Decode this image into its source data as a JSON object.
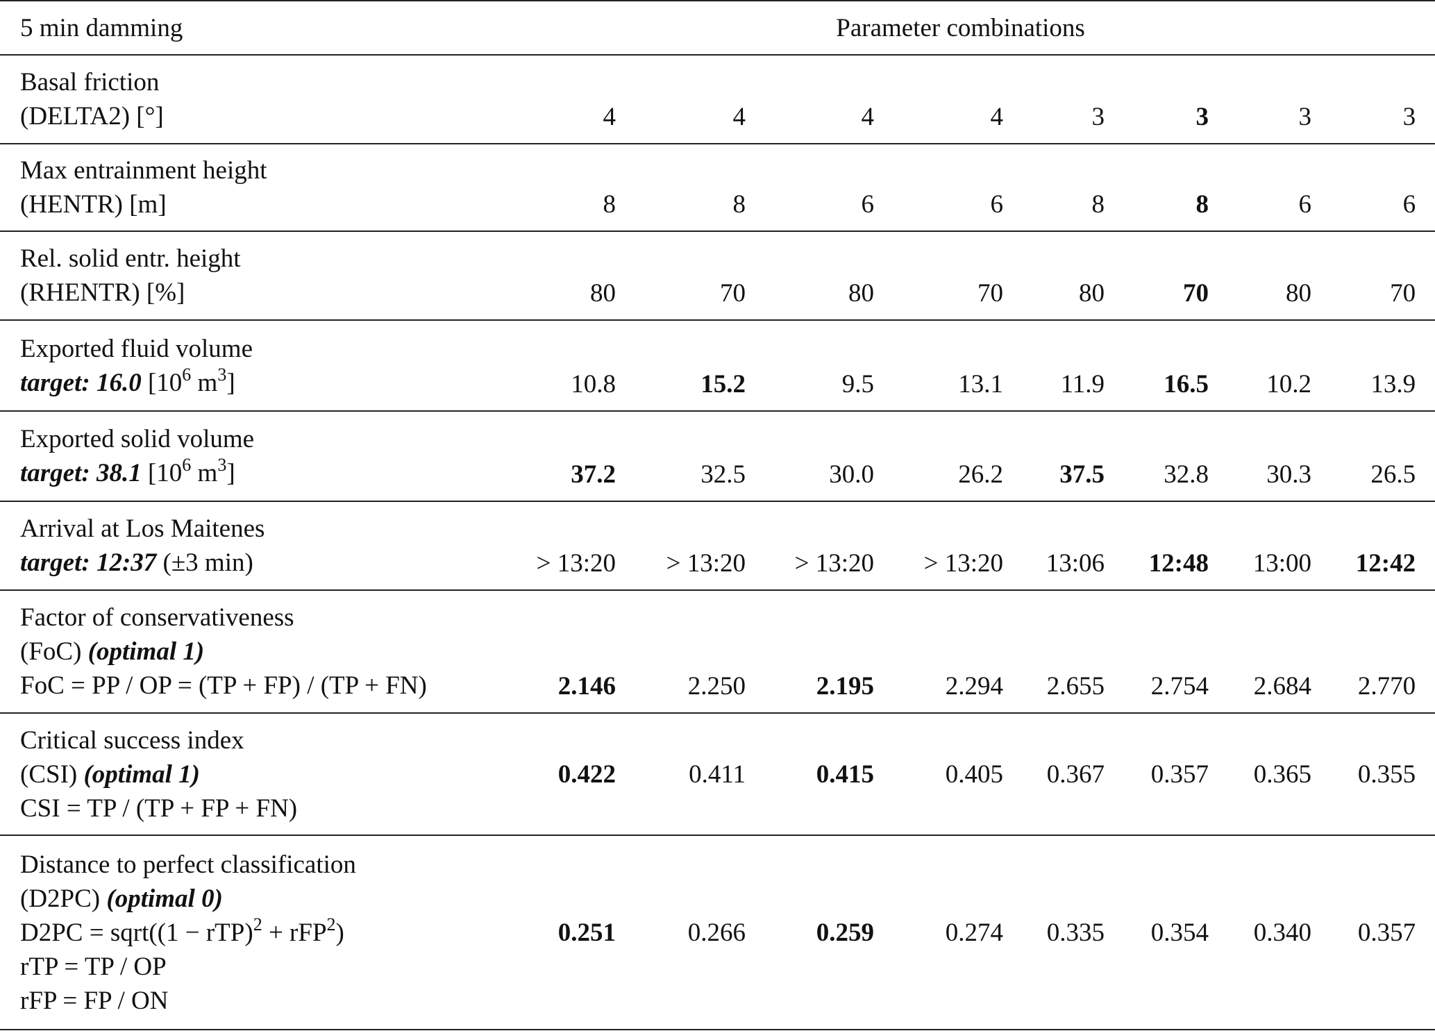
{
  "table": {
    "header": [
      "5 min damming",
      "Parameter combinations"
    ],
    "rows": [
      {
        "label": [
          [
            "Basal friction"
          ],
          [
            "(DELTA2) [°]"
          ]
        ],
        "values": [
          "4",
          "4",
          "4",
          "4",
          "3",
          "3",
          "3",
          "3"
        ],
        "bold": [
          5
        ]
      },
      {
        "label": [
          [
            "Max entrainment height"
          ],
          [
            "(HENTR) [m]"
          ]
        ],
        "values": [
          "8",
          "8",
          "6",
          "6",
          "8",
          "8",
          "6",
          "6"
        ],
        "bold": [
          5
        ]
      },
      {
        "label": [
          [
            "Rel. solid entr. height"
          ],
          [
            "(RHENTR) [%]"
          ]
        ],
        "values": [
          "80",
          "70",
          "80",
          "70",
          "80",
          "70",
          "80",
          "70"
        ],
        "bold": [
          5
        ]
      },
      {
        "label": [
          [
            "Exported fluid volume"
          ],
          [
            {
              "text": "target: 16.0",
              "style": "bold-italic"
            },
            " [10",
            {
              "text": "6",
              "style": "sup"
            },
            " m",
            {
              "text": "3",
              "style": "sup"
            },
            "]"
          ]
        ],
        "values": [
          "10.8",
          "15.2",
          "9.5",
          "13.1",
          "11.9",
          "16.5",
          "10.2",
          "13.9"
        ],
        "bold": [
          1,
          5
        ]
      },
      {
        "label": [
          [
            "Exported solid volume"
          ],
          [
            {
              "text": "target: 38.1",
              "style": "bold-italic"
            },
            " [10",
            {
              "text": "6",
              "style": "sup"
            },
            " m",
            {
              "text": "3",
              "style": "sup"
            },
            "]"
          ]
        ],
        "values": [
          "37.2",
          "32.5",
          "30.0",
          "26.2",
          "37.5",
          "32.8",
          "30.3",
          "26.5"
        ],
        "bold": [
          0,
          4
        ]
      },
      {
        "label": [
          [
            "Arrival at Los Maitenes"
          ],
          [
            {
              "text": "target: 12:37",
              "style": "bold-italic"
            },
            " (±3 min)"
          ]
        ],
        "values": [
          "> 13:20",
          "> 13:20",
          "> 13:20",
          "> 13:20",
          "13:06",
          "12:48",
          "13:00",
          "12:42"
        ],
        "bold": [
          5,
          7
        ]
      },
      {
        "label": [
          [
            "Factor of conservativeness"
          ],
          [
            "(FoC) ",
            {
              "text": "(optimal 1)",
              "style": "bold-italic"
            }
          ],
          [
            "FoC = PP / OP = (TP + FP) / (TP + FN)"
          ]
        ],
        "values": [
          "2.146",
          "2.250",
          "2.195",
          "2.294",
          "2.655",
          "2.754",
          "2.684",
          "2.770"
        ],
        "bold": [
          0,
          2
        ]
      },
      {
        "label": [
          [
            "Critical success index"
          ],
          [
            "(CSI) ",
            {
              "text": "(optimal 1)",
              "style": "bold-italic"
            }
          ],
          [
            "CSI = TP / (TP + FP + FN)"
          ]
        ],
        "values": [
          "0.422",
          "0.411",
          "0.415",
          "0.405",
          "0.367",
          "0.357",
          "0.365",
          "0.355"
        ],
        "bold": [
          0,
          2
        ]
      },
      {
        "label": [
          [
            "Distance to perfect classification"
          ],
          [
            "(D2PC) ",
            {
              "text": "(optimal 0)",
              "style": "bold-italic"
            }
          ],
          [
            "D2PC = sqrt((1 − rTP)",
            {
              "text": "2",
              "style": "sup"
            },
            " + rFP",
            {
              "text": "2",
              "style": "sup"
            },
            ")"
          ],
          [
            "rTP = TP / OP"
          ],
          [
            "rFP = FP / ON"
          ]
        ],
        "values": [
          "0.251",
          "0.266",
          "0.259",
          "0.274",
          "0.335",
          "0.354",
          "0.340",
          "0.357"
        ],
        "bold": [
          0,
          2
        ]
      }
    ]
  }
}
